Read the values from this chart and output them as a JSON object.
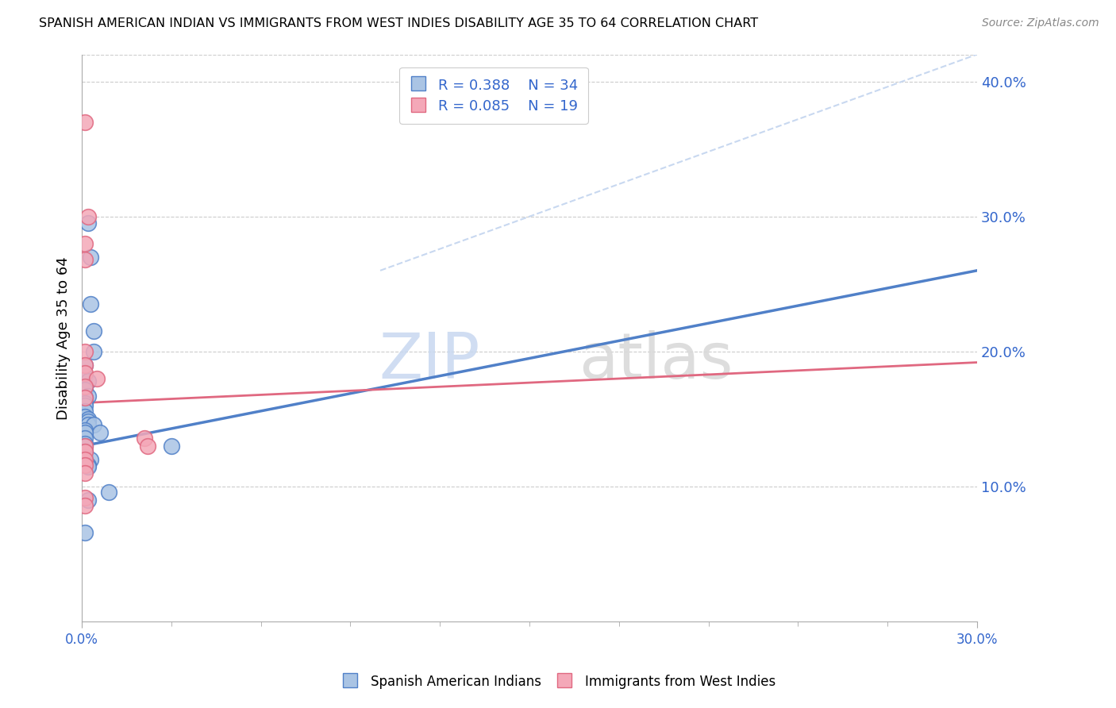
{
  "title": "SPANISH AMERICAN INDIAN VS IMMIGRANTS FROM WEST INDIES DISABILITY AGE 35 TO 64 CORRELATION CHART",
  "source": "Source: ZipAtlas.com",
  "ylabel": "Disability Age 35 to 64",
  "right_yticks": [
    10.0,
    20.0,
    30.0,
    40.0
  ],
  "legend_blue_R": "0.388",
  "legend_blue_N": "34",
  "legend_pink_R": "0.085",
  "legend_pink_N": "19",
  "legend_blue_label": "Spanish American Indians",
  "legend_pink_label": "Immigrants from West Indies",
  "blue_color": "#aac4e4",
  "pink_color": "#f4a8b8",
  "blue_line_color": "#5080c8",
  "pink_line_color": "#e06880",
  "diag_line_color": "#c8d8f0",
  "watermark_zip": "ZIP",
  "watermark_atlas": "atlas",
  "blue_scatter_x": [
    0.002,
    0.003,
    0.003,
    0.004,
    0.004,
    0.001,
    0.001,
    0.002,
    0.001,
    0.002,
    0.001,
    0.001,
    0.001,
    0.001,
    0.001,
    0.002,
    0.002,
    0.002,
    0.004,
    0.001,
    0.006,
    0.001,
    0.001,
    0.001,
    0.001,
    0.03,
    0.001,
    0.001,
    0.003,
    0.002,
    0.002,
    0.009,
    0.002,
    0.001
  ],
  "blue_scatter_y": [
    0.295,
    0.27,
    0.235,
    0.215,
    0.2,
    0.19,
    0.182,
    0.178,
    0.172,
    0.167,
    0.166,
    0.162,
    0.16,
    0.156,
    0.152,
    0.15,
    0.148,
    0.146,
    0.146,
    0.142,
    0.14,
    0.14,
    0.136,
    0.132,
    0.13,
    0.13,
    0.126,
    0.122,
    0.12,
    0.116,
    0.115,
    0.096,
    0.09,
    0.066
  ],
  "pink_scatter_x": [
    0.001,
    0.002,
    0.001,
    0.001,
    0.001,
    0.001,
    0.001,
    0.005,
    0.001,
    0.001,
    0.021,
    0.022,
    0.001,
    0.001,
    0.001,
    0.001,
    0.001,
    0.001,
    0.001
  ],
  "pink_scatter_y": [
    0.37,
    0.3,
    0.28,
    0.268,
    0.2,
    0.19,
    0.184,
    0.18,
    0.174,
    0.166,
    0.136,
    0.13,
    0.13,
    0.126,
    0.12,
    0.116,
    0.11,
    0.092,
    0.086
  ],
  "blue_line_x": [
    0.0,
    0.3
  ],
  "blue_line_y": [
    0.13,
    0.26
  ],
  "pink_line_x": [
    0.0,
    0.3
  ],
  "pink_line_y": [
    0.162,
    0.192
  ],
  "diag_line_x": [
    0.1,
    0.3
  ],
  "diag_line_y": [
    0.26,
    0.42
  ],
  "xlim": [
    0.0,
    0.3
  ],
  "ylim": [
    0.0,
    0.42
  ],
  "xtick_positions": [
    0.0,
    0.3
  ],
  "xtick_labels": [
    "0.0%",
    "30.0%"
  ],
  "xtick_minor_count": 9
}
